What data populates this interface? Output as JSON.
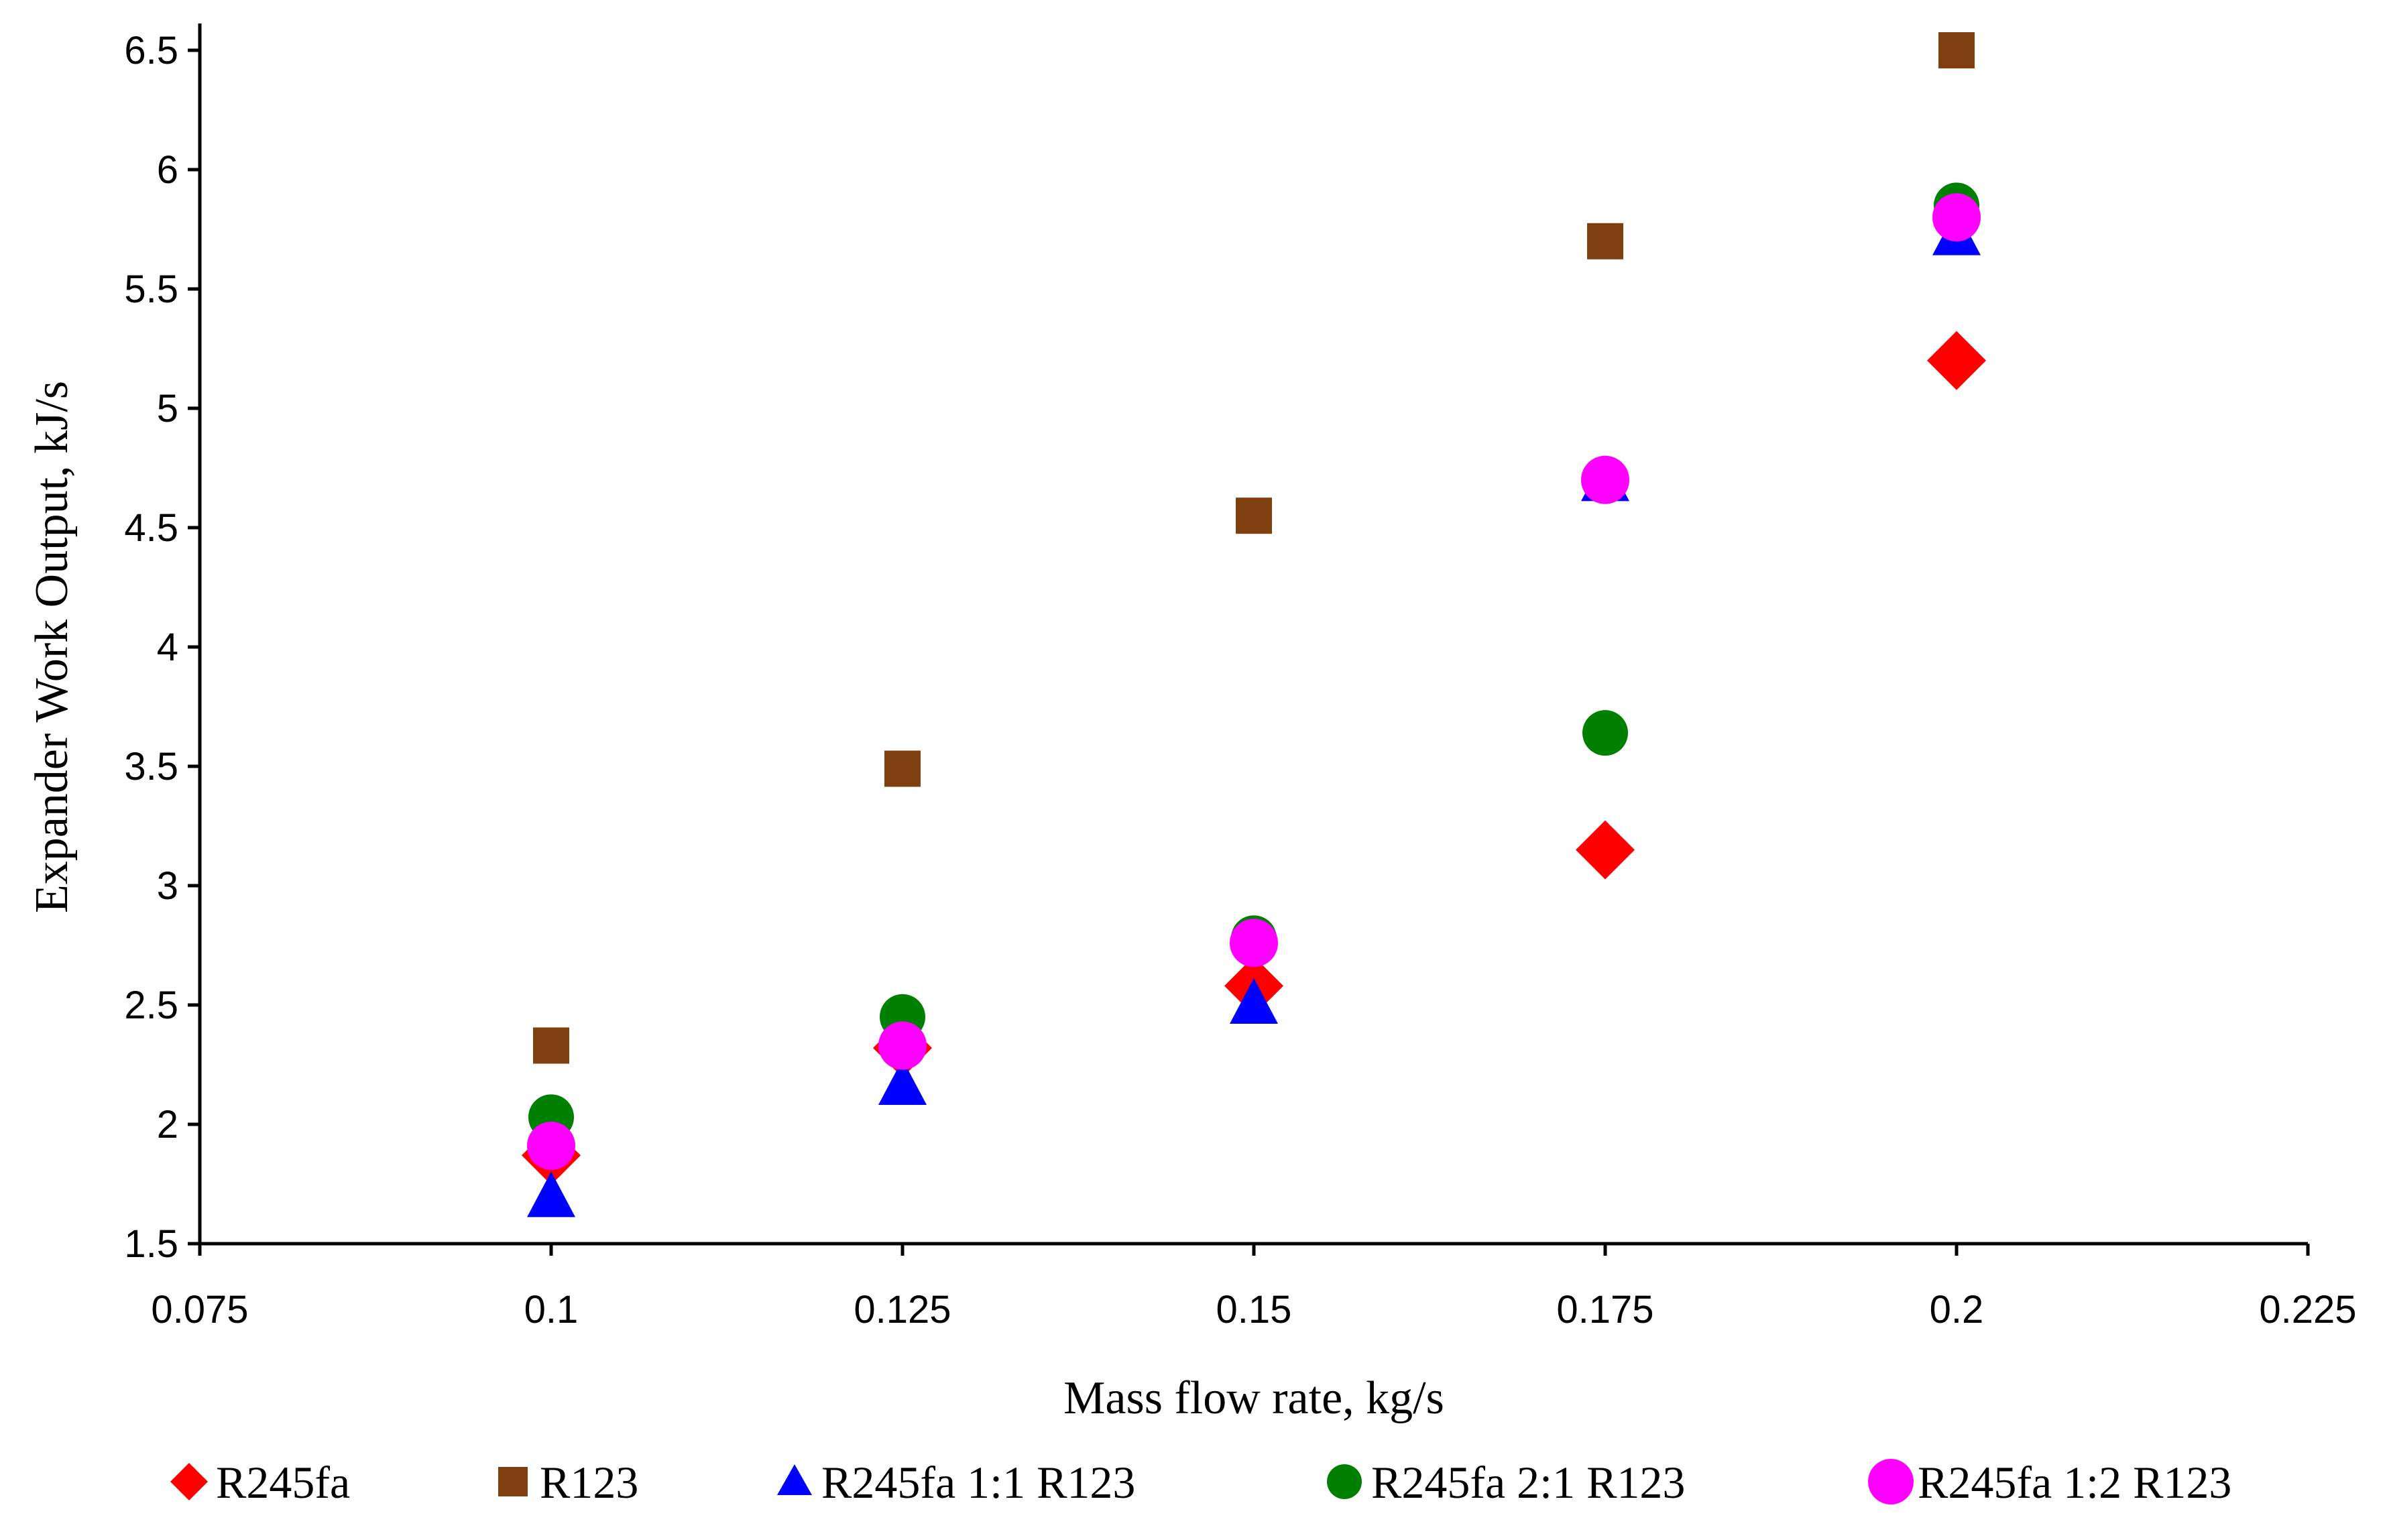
{
  "chart_data": {
    "type": "scatter",
    "title": "",
    "xlabel": "Mass flow rate, kg/s",
    "ylabel": "Expander Work Output, kJ/s",
    "xlim": [
      0.075,
      0.225
    ],
    "ylim": [
      1.5,
      6.5
    ],
    "x_ticks": [
      "0.075",
      "0.1",
      "0.125",
      "0.15",
      "0.175",
      "0.2",
      "0.225"
    ],
    "y_ticks": [
      "1.5",
      "2",
      "2.5",
      "3",
      "3.5",
      "4",
      "4.5",
      "5",
      "5.5",
      "6",
      "6.5"
    ],
    "grid": false,
    "legend_position": "bottom",
    "x": [
      0.1,
      0.125,
      0.15,
      0.175,
      0.2
    ],
    "series": [
      {
        "name": "R245fa",
        "marker": "diamond",
        "color": "#ff0000",
        "values": [
          1.87,
          2.32,
          2.58,
          3.15,
          5.2
        ]
      },
      {
        "name": "R123",
        "marker": "square",
        "color": "#7f3f0f",
        "values": [
          2.33,
          3.49,
          4.55,
          5.7,
          6.5
        ]
      },
      {
        "name": "R245fa 1:1 R123",
        "marker": "triangle",
        "color": "#0000ff",
        "values": [
          1.69,
          2.16,
          2.5,
          4.69,
          5.72
        ]
      },
      {
        "name": "R245fa 2:1 R123",
        "marker": "circle",
        "color": "#008000",
        "values": [
          2.03,
          2.45,
          2.78,
          3.64,
          5.85
        ]
      },
      {
        "name": "R245fa 1:2 R123",
        "marker": "circle",
        "color": "#ff00ff",
        "values": [
          1.91,
          2.33,
          2.76,
          4.7,
          5.8
        ]
      }
    ]
  }
}
